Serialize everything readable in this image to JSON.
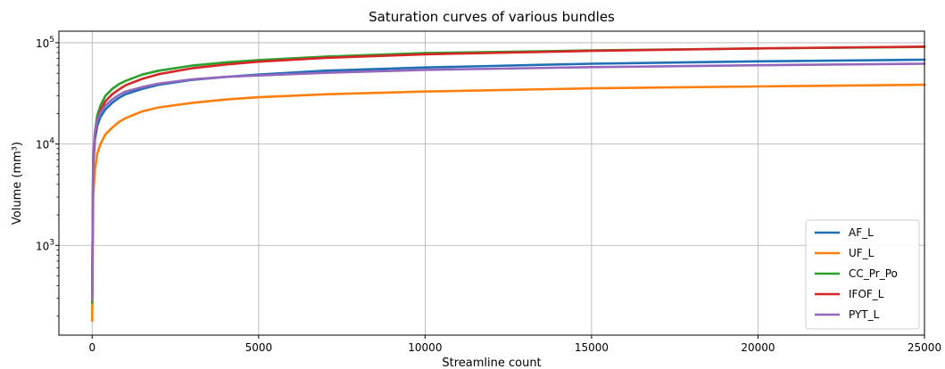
{
  "chart_data": {
    "type": "line",
    "title": "Saturation curves of various bundles",
    "xlabel": "Streamline count",
    "ylabel": "Volume (mm³)",
    "xlim": [
      -1000,
      25000
    ],
    "ylim": [
      130,
      130000
    ],
    "yscale": "log",
    "grid": true,
    "legend_position": "lower-right",
    "x_ticks": [
      0,
      5000,
      10000,
      15000,
      20000,
      25000
    ],
    "x_tick_labels": [
      "0",
      "5000",
      "10000",
      "15000",
      "20000",
      "25000"
    ],
    "y_ticks": [
      1000,
      10000,
      100000
    ],
    "y_tick_labels": [
      {
        "base": "10",
        "exp": "3"
      },
      {
        "base": "10",
        "exp": "4"
      },
      {
        "base": "10",
        "exp": "5"
      }
    ],
    "series": [
      {
        "name": "AF_L",
        "color": "#1f6fb4",
        "x": [
          0,
          30,
          80,
          150,
          250,
          400,
          600,
          800,
          1000,
          1500,
          2000,
          3000,
          4000,
          5000,
          7000,
          10000,
          15000,
          20000,
          25000
        ],
        "y": [
          300,
          6000,
          11000,
          15000,
          18500,
          22000,
          25500,
          28500,
          31000,
          35000,
          38500,
          43000,
          46000,
          48500,
          53000,
          57000,
          62000,
          65500,
          68000
        ]
      },
      {
        "name": "UF_L",
        "color": "#ff7f0e",
        "x": [
          0,
          30,
          80,
          150,
          250,
          400,
          600,
          800,
          1000,
          1500,
          2000,
          3000,
          4000,
          5000,
          7000,
          10000,
          15000,
          20000,
          25000
        ],
        "y": [
          180,
          3000,
          5500,
          8000,
          10000,
          12500,
          14500,
          16500,
          18000,
          21000,
          23000,
          25500,
          27500,
          29000,
          31000,
          33000,
          35500,
          37000,
          38500
        ]
      },
      {
        "name": "CC_Pr_Po",
        "color": "#2ca02c",
        "x": [
          0,
          30,
          80,
          150,
          250,
          400,
          600,
          800,
          1000,
          1500,
          2000,
          3000,
          4000,
          5000,
          7000,
          10000,
          15000,
          20000,
          25000
        ],
        "y": [
          270,
          7000,
          13000,
          19000,
          24000,
          30000,
          35000,
          39000,
          42000,
          48500,
          53000,
          59500,
          64000,
          67500,
          73000,
          79000,
          84000,
          88000,
          91000
        ]
      },
      {
        "name": "IFOF_L",
        "color": "#d62728",
        "x": [
          0,
          30,
          80,
          150,
          250,
          400,
          600,
          800,
          1000,
          1500,
          2000,
          3000,
          4000,
          5000,
          7000,
          10000,
          15000,
          20000,
          25000
        ],
        "y": [
          320,
          6500,
          12000,
          17000,
          21500,
          26500,
          31000,
          34500,
          38000,
          44000,
          49000,
          56000,
          61000,
          65000,
          71000,
          77000,
          83000,
          88000,
          91500
        ]
      },
      {
        "name": "PYT_L",
        "color": "#9467bd",
        "x": [
          0,
          30,
          80,
          150,
          250,
          400,
          600,
          800,
          1000,
          1500,
          2000,
          3000,
          4000,
          5000,
          7000,
          10000,
          15000,
          20000,
          25000
        ],
        "y": [
          290,
          7500,
          13000,
          17000,
          20500,
          24000,
          27500,
          30500,
          33000,
          36500,
          39500,
          43500,
          46000,
          47500,
          50500,
          54000,
          57500,
          60000,
          62000
        ]
      }
    ]
  }
}
